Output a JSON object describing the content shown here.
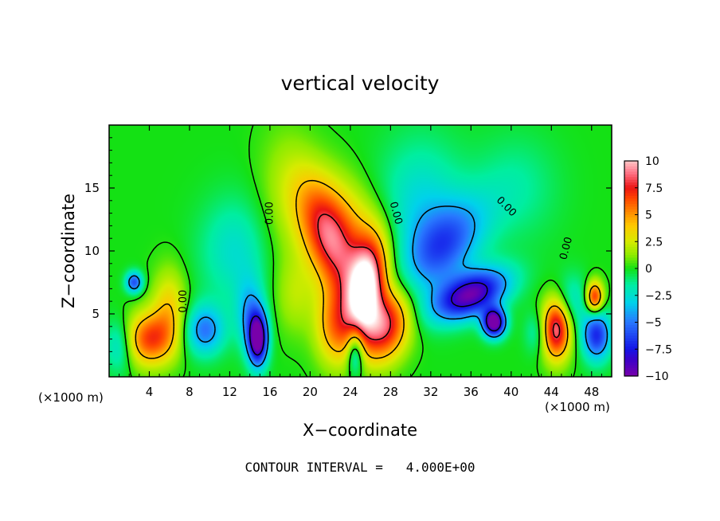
{
  "chart_data": {
    "type": "heatmap",
    "title": "vertical velocity",
    "xlabel": "X−coordinate",
    "ylabel": "Z−coordinate",
    "x_unit": "(×1000 m)",
    "x_unit_right": "(×1000 m)",
    "xlim": [
      0,
      50
    ],
    "ylim": [
      0,
      20
    ],
    "x_ticks": [
      4,
      8,
      12,
      16,
      20,
      24,
      28,
      32,
      36,
      40,
      44,
      48
    ],
    "x_tick_labels": [
      "4",
      "8",
      "12",
      "16",
      "20",
      "24",
      "28",
      "32",
      "36",
      "40",
      "44",
      "48"
    ],
    "y_ticks": [
      5,
      10,
      15
    ],
    "y_tick_labels": [
      "5",
      "10",
      "15"
    ],
    "colorbar": {
      "min": -10,
      "max": 10,
      "ticks": [
        10,
        7.5,
        5,
        2.5,
        0,
        -2.5,
        -5,
        -7.5,
        -10
      ],
      "tick_labels": [
        "10",
        "7.5",
        "5",
        "2.5",
        "0",
        "−2.5",
        "−5",
        "−7.5",
        "−10"
      ]
    },
    "contour_label": "0.00",
    "contour_interval": 4,
    "footer": "CONTOUR INTERVAL =   4.000E+00",
    "features": [
      {
        "kind": "updraft",
        "x": 25.5,
        "z": 7.0,
        "peak": 10.5,
        "sx": 1.3,
        "sz": 2.6,
        "tilt": 0.15
      },
      {
        "kind": "updraft",
        "x": 27.5,
        "z": 4.0,
        "peak": 8.0,
        "sx": 1.7,
        "sz": 2.0,
        "tilt": 0.2
      },
      {
        "kind": "updraft",
        "x": 22.0,
        "z": 10.5,
        "peak": 7.0,
        "sx": 1.8,
        "sz": 3.3,
        "tilt": -0.35
      },
      {
        "kind": "updraft",
        "x": 24.0,
        "z": 12.0,
        "peak": 3.5,
        "sx": 2.8,
        "sz": 3.0,
        "tilt": -0.5
      },
      {
        "kind": "updraft",
        "x": 22.5,
        "z": 4.0,
        "peak": 5.0,
        "sx": 1.4,
        "sz": 2.2,
        "tilt": 0
      },
      {
        "kind": "updraft",
        "x": 4.0,
        "z": 3.0,
        "peak": 6.5,
        "sx": 1.7,
        "sz": 1.5,
        "tilt": 0
      },
      {
        "kind": "updraft",
        "x": 6.0,
        "z": 5.5,
        "peak": 3.5,
        "sx": 1.2,
        "sz": 2.2,
        "tilt": 0
      },
      {
        "kind": "updraft",
        "x": 44.5,
        "z": 3.8,
        "peak": 9.0,
        "sx": 1.0,
        "sz": 1.7,
        "tilt": 0
      },
      {
        "kind": "updraft",
        "x": 48.3,
        "z": 6.3,
        "peak": 7.5,
        "sx": 0.6,
        "sz": 0.9,
        "tilt": 0
      },
      {
        "kind": "updraft",
        "x": 18.5,
        "z": 6.5,
        "peak": 1.8,
        "sx": 1.4,
        "sz": 2.2,
        "tilt": 0
      },
      {
        "kind": "updraft",
        "x": 17.5,
        "z": 14.0,
        "peak": 1.5,
        "sx": 2.0,
        "sz": 4.0,
        "tilt": 0
      },
      {
        "kind": "downdraft",
        "x": 36.0,
        "z": 6.5,
        "peak": -9.5,
        "sx": 2.3,
        "sz": 1.4,
        "tilt": 0.85
      },
      {
        "kind": "downdraft",
        "x": 38.3,
        "z": 4.3,
        "peak": -11.0,
        "sx": 0.8,
        "sz": 0.8,
        "tilt": 0
      },
      {
        "kind": "downdraft",
        "x": 33.5,
        "z": 10.5,
        "peak": -5.0,
        "sx": 2.5,
        "sz": 2.5,
        "tilt": 0.6
      },
      {
        "kind": "downdraft",
        "x": 14.8,
        "z": 3.0,
        "peak": -10.5,
        "sx": 0.7,
        "sz": 1.5,
        "tilt": 0
      },
      {
        "kind": "downdraft",
        "x": 14.0,
        "z": 5.0,
        "peak": -3.5,
        "sx": 1.0,
        "sz": 2.0,
        "tilt": 0
      },
      {
        "kind": "downdraft",
        "x": 9.5,
        "z": 3.7,
        "peak": -5.0,
        "sx": 1.4,
        "sz": 1.4,
        "tilt": 0
      },
      {
        "kind": "downdraft",
        "x": 2.5,
        "z": 7.5,
        "peak": -6.0,
        "sx": 0.6,
        "sz": 0.6,
        "tilt": 0
      },
      {
        "kind": "downdraft",
        "x": 24.5,
        "z": 2.0,
        "peak": -5.0,
        "sx": 0.6,
        "sz": 1.3,
        "tilt": 0
      },
      {
        "kind": "downdraft",
        "x": 48.5,
        "z": 3.3,
        "peak": -7.0,
        "sx": 1.0,
        "sz": 1.4,
        "tilt": 0
      },
      {
        "kind": "downdraft",
        "x": 46.0,
        "z": 6.0,
        "peak": -2.5,
        "sx": 1.2,
        "sz": 1.5,
        "tilt": 0
      },
      {
        "kind": "downdraft",
        "x": 12.5,
        "z": 10.0,
        "peak": -2.5,
        "sx": 2.5,
        "sz": 3.0,
        "tilt": 0
      },
      {
        "kind": "downdraft",
        "x": 31.0,
        "z": 13.0,
        "peak": -3.0,
        "sx": 3.0,
        "sz": 4.0,
        "tilt": 0
      },
      {
        "kind": "downdraft",
        "x": 1.0,
        "z": 2.5,
        "peak": -3.0,
        "sx": 1.0,
        "sz": 1.5,
        "tilt": 0
      },
      {
        "kind": "downdraft",
        "x": 42.5,
        "z": 3.5,
        "peak": -2.0,
        "sx": 0.8,
        "sz": 1.2,
        "tilt": 0
      },
      {
        "kind": "downdraft",
        "x": 40.5,
        "z": 15.0,
        "peak": -1.5,
        "sx": 3.0,
        "sz": 3.0,
        "tilt": 0
      }
    ]
  }
}
